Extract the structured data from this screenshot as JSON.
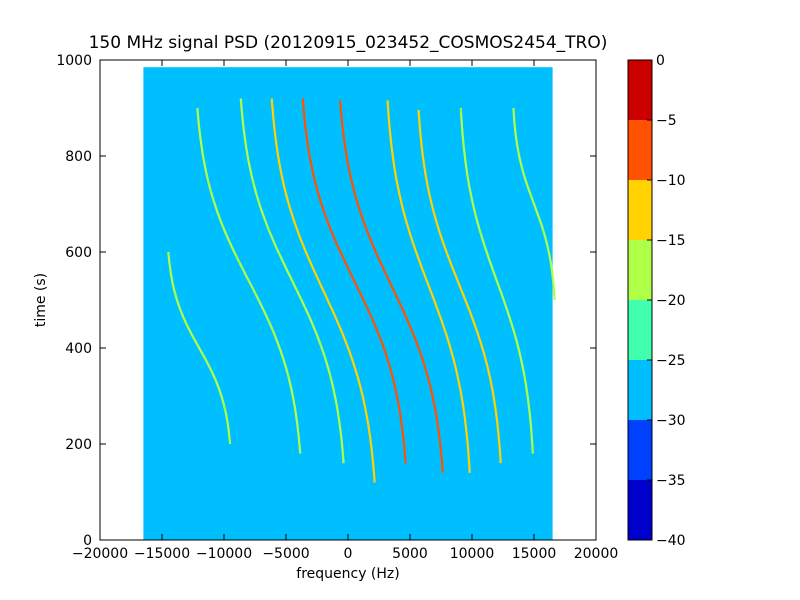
{
  "chart_data": {
    "type": "heatmap",
    "title": "150 MHz signal PSD (20120915_023452_COSMOS2454_TRO)",
    "xlabel": "frequency (Hz)",
    "ylabel": "time (s)",
    "xlim": [
      -20000,
      20000
    ],
    "ylim": [
      0,
      1000
    ],
    "x_ticks": [
      -20000,
      -15000,
      -10000,
      -5000,
      0,
      5000,
      10000,
      15000,
      20000
    ],
    "x_tick_labels": [
      "−20000",
      "−15000",
      "−10000",
      "−5000",
      "0",
      "5000",
      "10000",
      "15000",
      "20000"
    ],
    "y_ticks": [
      0,
      200,
      400,
      600,
      800,
      1000
    ],
    "y_tick_labels": [
      "0",
      "200",
      "400",
      "600",
      "800",
      "1000"
    ],
    "data_extent": {
      "x": [
        -16500,
        16500
      ],
      "y": [
        0,
        985
      ]
    },
    "background_level": -27,
    "colorbar": {
      "levels": [
        -40,
        -35,
        -30,
        -25,
        -20,
        -15,
        -10,
        -5,
        0
      ],
      "tick_labels": [
        "−40",
        "−35",
        "−30",
        "−25",
        "−20",
        "−15",
        "−10",
        "−5",
        "0"
      ],
      "colors": [
        "#0000cd",
        "#0040ff",
        "#00bfff",
        "#40ffaf",
        "#b0ff47",
        "#ffd200",
        "#ff5200",
        "#cd0000"
      ]
    },
    "series": [
      {
        "t_start": 200,
        "t_end": 600,
        "f_center": -12000,
        "slope": -80,
        "amplitude": 3000,
        "peak_level": -18
      },
      {
        "t_start": 180,
        "t_end": 900,
        "f_center": -8000,
        "slope": -90,
        "amplitude": 5000,
        "peak_level": -19
      },
      {
        "t_start": 160,
        "t_end": 920,
        "f_center": -4500,
        "slope": -100,
        "amplitude": 5000,
        "peak_level": -17
      },
      {
        "t_start": 120,
        "t_end": 920,
        "f_center": -2000,
        "slope": -100,
        "amplitude": 5000,
        "peak_level": -12
      },
      {
        "t_start": 160,
        "t_end": 920,
        "f_center": 500,
        "slope": -100,
        "amplitude": 5000,
        "peak_level": -10
      },
      {
        "t_start": 140,
        "t_end": 920,
        "f_center": 3500,
        "slope": -100,
        "amplitude": 5000,
        "peak_level": -8
      },
      {
        "t_start": 140,
        "t_end": 920,
        "f_center": 6500,
        "slope": -100,
        "amplitude": 4000,
        "peak_level": -11
      },
      {
        "t_start": 160,
        "t_end": 900,
        "f_center": 9000,
        "slope": -100,
        "amplitude": 4000,
        "peak_level": -14
      },
      {
        "t_start": 180,
        "t_end": 900,
        "f_center": 12000,
        "slope": -90,
        "amplitude": 3500,
        "peak_level": -17
      },
      {
        "t_start": 500,
        "t_end": 900,
        "f_center": 15000,
        "slope": -60,
        "amplitude": 2000,
        "peak_level": -19
      }
    ]
  }
}
